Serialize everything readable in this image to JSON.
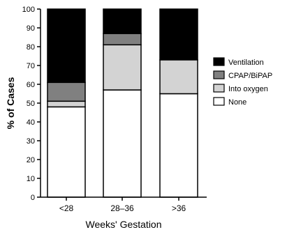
{
  "chart_data": {
    "type": "bar",
    "stacked": true,
    "categories": [
      "<28",
      "28–36",
      ">36"
    ],
    "series": [
      {
        "name": "None",
        "color": "#ffffff",
        "values": [
          48,
          57,
          55
        ]
      },
      {
        "name": "Into oxygen",
        "color": "#d3d3d3",
        "values": [
          3,
          24,
          18
        ]
      },
      {
        "name": "CPAP/BiPAP",
        "color": "#808080",
        "values": [
          10,
          6,
          0
        ]
      },
      {
        "name": "Ventilation",
        "color": "#000000",
        "values": [
          39,
          13,
          27
        ]
      }
    ],
    "legend_order": [
      "Ventilation",
      "CPAP/BiPAP",
      "Into oxygen",
      "None"
    ],
    "xlabel": "Weeks' Gestation",
    "ylabel": "% of Cases",
    "ylim": [
      0,
      100
    ],
    "yticks": [
      "0",
      "10",
      "20",
      "30",
      "40",
      "50",
      "60",
      "70",
      "80",
      "90",
      "100"
    ],
    "legend_position": "right",
    "grid": false
  }
}
